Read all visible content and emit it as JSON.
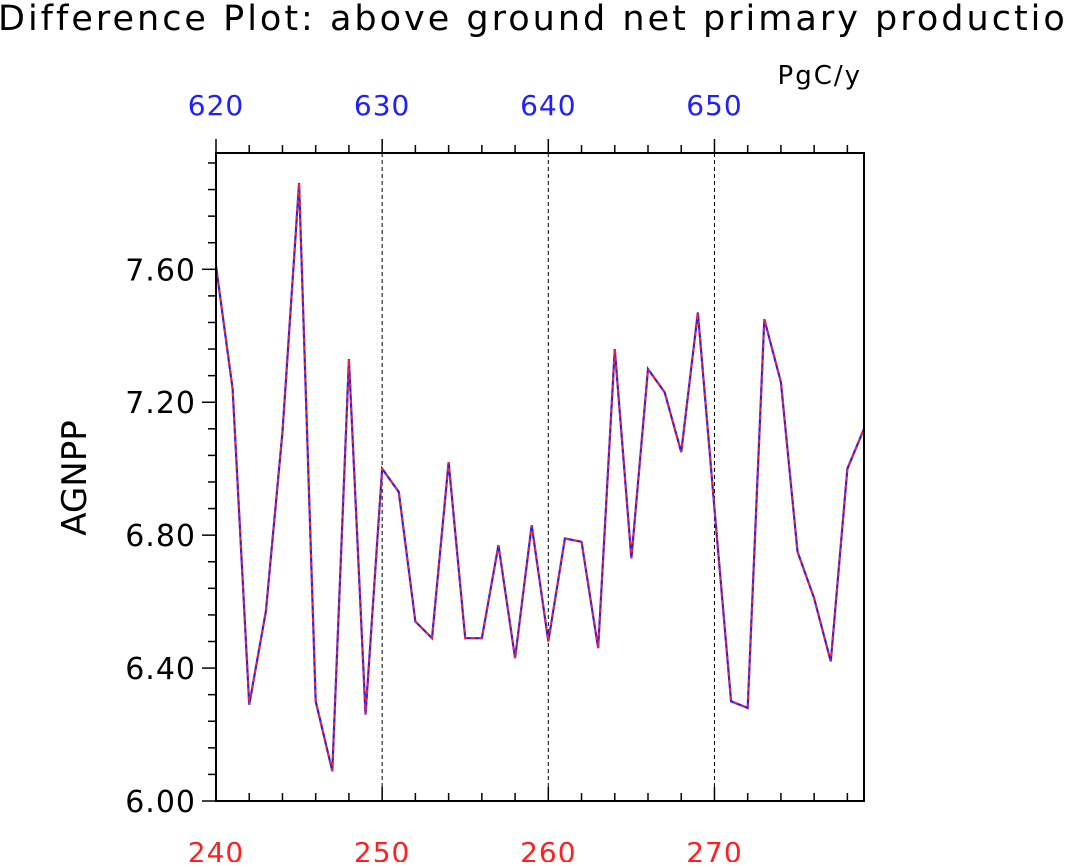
{
  "chart_data": {
    "type": "line",
    "title": "Difference Plot: above ground net primary productio",
    "units": "PgC/y",
    "ylabel": "AGNPP",
    "xlabel": "",
    "x_bottom": {
      "range": [
        240,
        279
      ],
      "ticks": [
        240,
        250,
        260,
        270
      ],
      "tick_labels": [
        "240",
        "250",
        "260",
        "270"
      ],
      "color": "#ff2020"
    },
    "x_top": {
      "range": [
        620,
        659
      ],
      "ticks": [
        620,
        630,
        640,
        650
      ],
      "tick_labels": [
        "620",
        "630",
        "640",
        "650"
      ],
      "color": "#2020ff"
    },
    "ylim": [
      6.0,
      7.95
    ],
    "y_ticks": [
      6.0,
      6.4,
      6.8,
      7.2,
      7.6
    ],
    "y_tick_labels": [
      "6.00",
      "6.40",
      "6.80",
      "7.20",
      "7.60"
    ],
    "grid": "vertical dashed at major x ticks",
    "x": [
      240,
      241,
      242,
      243,
      244,
      245,
      246,
      247,
      248,
      249,
      250,
      251,
      252,
      253,
      254,
      255,
      256,
      257,
      258,
      259,
      260,
      261,
      262,
      263,
      264,
      265,
      266,
      267,
      268,
      269,
      270,
      271,
      272,
      273,
      274,
      275,
      276,
      277,
      278,
      279
    ],
    "series": [
      {
        "color": "#2020ff",
        "style": "solid",
        "values": [
          7.61,
          7.24,
          6.29,
          6.57,
          7.11,
          7.86,
          6.3,
          6.09,
          7.33,
          6.26,
          7.0,
          6.93,
          6.54,
          6.49,
          7.02,
          6.49,
          6.49,
          6.77,
          6.43,
          6.83,
          6.48,
          6.79,
          6.78,
          6.46,
          7.36,
          6.73,
          7.3,
          7.23,
          7.05,
          7.47,
          6.88,
          6.3,
          6.28,
          7.45,
          7.26,
          6.75,
          6.61,
          6.42,
          7.0,
          7.12
        ]
      },
      {
        "color": "#ff2020",
        "style": "dashed",
        "values": [
          7.61,
          7.24,
          6.29,
          6.57,
          7.11,
          7.86,
          6.3,
          6.09,
          7.33,
          6.26,
          7.0,
          6.93,
          6.54,
          6.49,
          7.02,
          6.49,
          6.49,
          6.77,
          6.43,
          6.83,
          6.48,
          6.79,
          6.78,
          6.46,
          7.36,
          6.73,
          7.3,
          7.23,
          7.05,
          7.47,
          6.88,
          6.3,
          6.28,
          7.45,
          7.26,
          6.75,
          6.61,
          6.42,
          7.0,
          7.12
        ]
      }
    ]
  }
}
